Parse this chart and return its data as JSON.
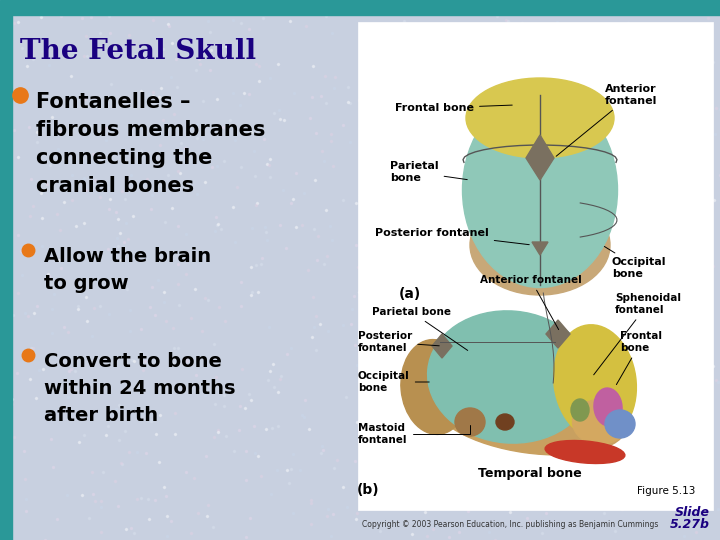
{
  "bg_color": "#c8d0e0",
  "header_color": "#2a9898",
  "title_text": "The Fetal Skull",
  "title_color": "#1a0080",
  "title_fontsize": 20,
  "bullet_color": "#e87818",
  "text1_lines": [
    "Fontanelles –",
    "fibrous membranes",
    "connecting the",
    "cranial bones"
  ],
  "text1_fontsize": 15,
  "text2_lines": [
    "Allow the brain",
    "to grow"
  ],
  "text2_fontsize": 14,
  "text3_lines": [
    "Convert to bone",
    "within 24 months",
    "after birth"
  ],
  "text3_fontsize": 14,
  "copyright_text": "Copyright © 2003 Pearson Education, Inc. publishing as Benjamin Cummings",
  "fig_caption": "Figure 5.13",
  "fig_slide_color": "#1a0080"
}
